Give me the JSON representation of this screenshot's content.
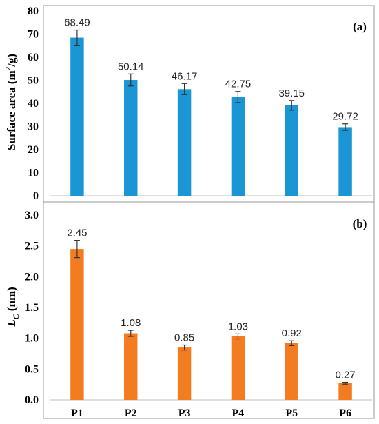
{
  "chart_data": [
    {
      "type": "bar",
      "panel_label": "(a)",
      "categories": [
        "P1",
        "P2",
        "P3",
        "P4",
        "P5",
        "P6"
      ],
      "values": [
        68.49,
        50.14,
        46.17,
        42.75,
        39.15,
        29.72
      ],
      "errors": [
        3.3,
        2.6,
        2.4,
        2.4,
        2.1,
        1.4
      ],
      "data_labels": [
        "68.49",
        "50.14",
        "46.17",
        "42.75",
        "39.15",
        "29.72"
      ],
      "ylabel": "Surface area (m²/g)",
      "ylabel_main": "Surface area (m",
      "ylabel_sup": "2",
      "ylabel_end": "/g)",
      "ylim": [
        0,
        80
      ],
      "yticks": [
        0,
        10,
        20,
        30,
        40,
        50,
        60,
        70,
        80
      ],
      "ytick_labels": [
        "0",
        "10",
        "20",
        "30",
        "40",
        "50",
        "60",
        "70",
        "80"
      ],
      "color": "#1a96d4",
      "show_xtick_labels": false
    },
    {
      "type": "bar",
      "panel_label": "(b)",
      "categories": [
        "P1",
        "P2",
        "P3",
        "P4",
        "P5",
        "P6"
      ],
      "values": [
        2.45,
        1.08,
        0.85,
        1.03,
        0.92,
        0.27
      ],
      "errors": [
        0.14,
        0.05,
        0.04,
        0.04,
        0.04,
        0.015
      ],
      "data_labels": [
        "2.45",
        "1.08",
        "0.85",
        "1.03",
        "0.92",
        "0.27"
      ],
      "ylabel": "LC (nm)",
      "ylabel_main": "L",
      "ylabel_sub": "C",
      "ylabel_end": " (nm)",
      "ylim": [
        0,
        3.0
      ],
      "yticks": [
        0,
        0.5,
        1.0,
        1.5,
        2.0,
        2.5,
        3.0
      ],
      "ytick_labels": [
        "0.0",
        "0.5",
        "1.0",
        "1.5",
        "2.0",
        "2.5",
        "3.0"
      ],
      "xtick_labels": [
        "P1",
        "P2",
        "P3",
        "P4",
        "P5",
        "P6"
      ],
      "color": "#f47c20",
      "show_xtick_labels": true
    }
  ]
}
